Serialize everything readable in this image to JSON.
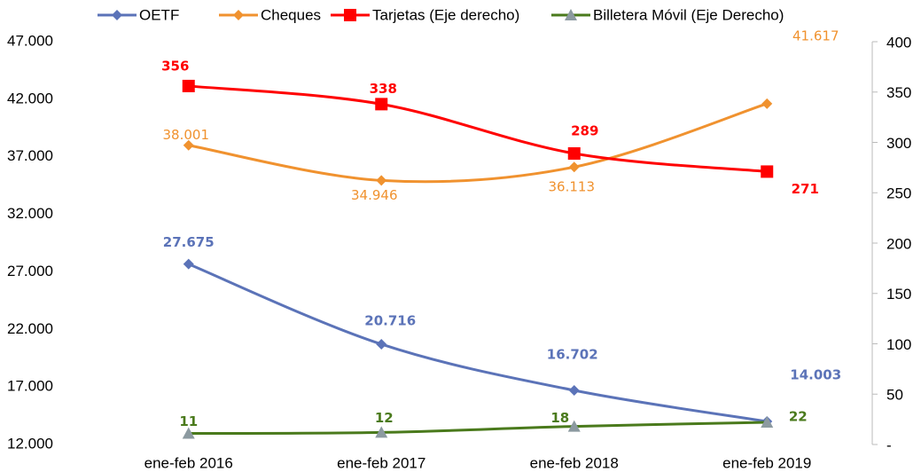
{
  "chart_data": {
    "type": "line",
    "categories": [
      "ene-feb 2016",
      "ene-feb 2017",
      "ene-feb 2018",
      "ene-feb 2019"
    ],
    "series": [
      {
        "name": "OETF",
        "color": "#5b73b8",
        "values": [
          27675,
          20716,
          16702,
          14003
        ],
        "value_labels": [
          "27.675",
          "20.716",
          "16.702",
          "14.003"
        ]
      },
      {
        "name": "Cheques",
        "color": "#f0922f",
        "values": [
          38001,
          34946,
          36113,
          41617
        ],
        "value_labels": [
          "38.001",
          "34.946",
          "36.113",
          "41.617"
        ]
      },
      {
        "name": "Tarjetas (Eje derecho)",
        "color": "#ff0000",
        "values": [
          356,
          338,
          289,
          271
        ],
        "axis": "y2"
      },
      {
        "name": "Billetera Móvil (Eje Derecho)",
        "color": "#4a7a1c",
        "marker_color": "#8c9aa0",
        "values": [
          11,
          12,
          18,
          22
        ],
        "axis": "y2"
      }
    ],
    "ylim": [
      12000,
      47000
    ],
    "yticks": [
      {
        "value": 12000,
        "label": "12.000"
      },
      {
        "value": 17000,
        "label": "17.000"
      },
      {
        "value": 22000,
        "label": "22.000"
      },
      {
        "value": 27000,
        "label": "27.000"
      },
      {
        "value": 32000,
        "label": "32.000"
      },
      {
        "value": 37000,
        "label": "37.000"
      },
      {
        "value": 42000,
        "label": "42.000"
      },
      {
        "value": 47000,
        "label": "47.000"
      }
    ],
    "y2lim": [
      0,
      400
    ],
    "y2ticks": [
      {
        "value": 0,
        "label": "-"
      },
      50,
      100,
      150,
      200,
      250,
      300,
      350,
      400
    ],
    "legend": "top"
  }
}
